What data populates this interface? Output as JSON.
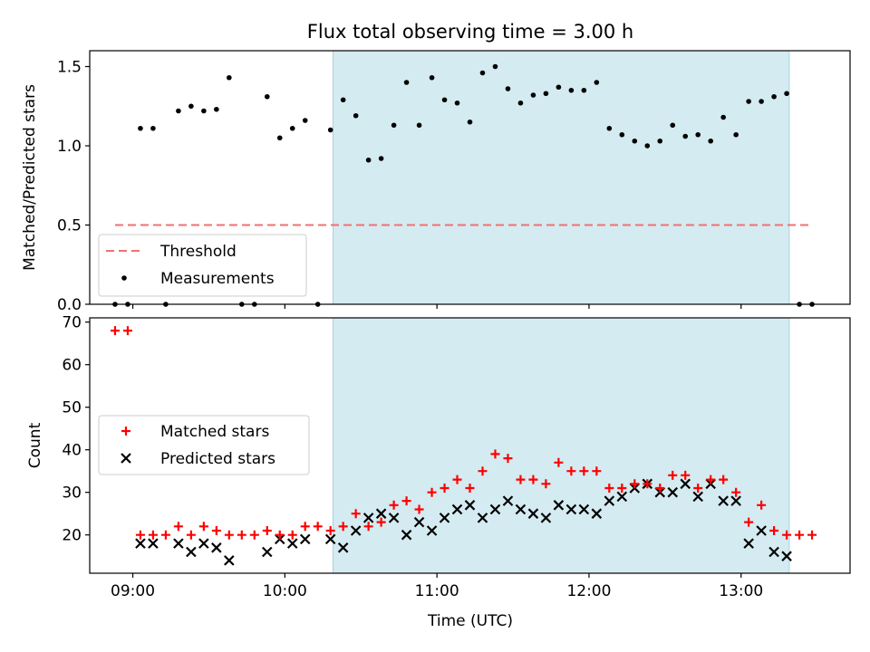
{
  "chart_data": [
    {
      "type": "scatter",
      "title": "Flux total observing time = 3.00 h",
      "xlabel": "",
      "ylabel": "Matched/Predicted stars",
      "xlim": [
        "08:43",
        "13:43"
      ],
      "ylim": [
        0,
        1.6
      ],
      "yticks": [
        0.0,
        0.5,
        1.0,
        1.5
      ],
      "ytick_labels": [
        "0.0",
        "0.5",
        "1.0",
        "1.5"
      ],
      "grid": false,
      "legend_position": "lower-left",
      "shaded_interval": [
        "10:19",
        "13:19"
      ],
      "threshold": {
        "name": "Threshold",
        "value": 0.5,
        "x_range": [
          "08:53",
          "13:28"
        ],
        "color": "#f07070"
      },
      "series": [
        {
          "name": "Measurements",
          "color": "#000000",
          "points": [
            [
              "08:53",
              0
            ],
            [
              "08:58",
              0
            ],
            [
              "09:03",
              1.11
            ],
            [
              "09:08",
              1.11
            ],
            [
              "09:13",
              0
            ],
            [
              "09:18",
              1.22
            ],
            [
              "09:23",
              1.25
            ],
            [
              "09:28",
              1.22
            ],
            [
              "09:33",
              1.23
            ],
            [
              "09:38",
              1.43
            ],
            [
              "09:43",
              0
            ],
            [
              "09:48",
              0
            ],
            [
              "09:53",
              1.31
            ],
            [
              "09:58",
              1.05
            ],
            [
              "10:03",
              1.11
            ],
            [
              "10:08",
              1.16
            ],
            [
              "10:13",
              0
            ],
            [
              "10:18",
              1.1
            ],
            [
              "10:23",
              1.29
            ],
            [
              "10:28",
              1.19
            ],
            [
              "10:33",
              0.91
            ],
            [
              "10:38",
              0.92
            ],
            [
              "10:43",
              1.13
            ],
            [
              "10:48",
              1.4
            ],
            [
              "10:53",
              1.13
            ],
            [
              "10:58",
              1.43
            ],
            [
              "11:03",
              1.29
            ],
            [
              "11:08",
              1.27
            ],
            [
              "11:13",
              1.15
            ],
            [
              "11:18",
              1.46
            ],
            [
              "11:23",
              1.5
            ],
            [
              "11:28",
              1.36
            ],
            [
              "11:33",
              1.27
            ],
            [
              "11:38",
              1.32
            ],
            [
              "11:43",
              1.33
            ],
            [
              "11:48",
              1.37
            ],
            [
              "11:53",
              1.35
            ],
            [
              "11:58",
              1.35
            ],
            [
              "12:03",
              1.4
            ],
            [
              "12:08",
              1.11
            ],
            [
              "12:13",
              1.07
            ],
            [
              "12:18",
              1.03
            ],
            [
              "12:23",
              1.0
            ],
            [
              "12:28",
              1.03
            ],
            [
              "12:33",
              1.13
            ],
            [
              "12:38",
              1.06
            ],
            [
              "12:43",
              1.07
            ],
            [
              "12:48",
              1.03
            ],
            [
              "12:53",
              1.18
            ],
            [
              "12:58",
              1.07
            ],
            [
              "13:03",
              1.28
            ],
            [
              "13:08",
              1.28
            ],
            [
              "13:13",
              1.31
            ],
            [
              "13:18",
              1.33
            ],
            [
              "13:23",
              0
            ],
            [
              "13:28",
              0
            ]
          ]
        }
      ]
    },
    {
      "type": "scatter",
      "title": "",
      "xlabel": "Time (UTC)",
      "ylabel": "Count",
      "xlim": [
        "08:43",
        "13:43"
      ],
      "ylim": [
        11,
        71
      ],
      "yticks": [
        20,
        30,
        40,
        50,
        60,
        70
      ],
      "ytick_labels": [
        "20",
        "30",
        "40",
        "50",
        "60",
        "70"
      ],
      "xticks": [
        "09:00",
        "10:00",
        "11:00",
        "12:00",
        "13:00"
      ],
      "xtick_labels": [
        "09:00",
        "10:00",
        "11:00",
        "12:00",
        "13:00"
      ],
      "grid": false,
      "legend_position": "center-left",
      "shaded_interval": [
        "10:19",
        "13:19"
      ],
      "series": [
        {
          "name": "Matched stars",
          "color": "#ff0000",
          "marker": "plus",
          "points": [
            [
              "08:53",
              68
            ],
            [
              "08:58",
              68
            ],
            [
              "09:03",
              20
            ],
            [
              "09:08",
              20
            ],
            [
              "09:13",
              20
            ],
            [
              "09:18",
              22
            ],
            [
              "09:23",
              20
            ],
            [
              "09:28",
              22
            ],
            [
              "09:33",
              21
            ],
            [
              "09:38",
              20
            ],
            [
              "09:43",
              20
            ],
            [
              "09:48",
              20
            ],
            [
              "09:53",
              21
            ],
            [
              "09:58",
              20
            ],
            [
              "10:03",
              20
            ],
            [
              "10:08",
              22
            ],
            [
              "10:13",
              22
            ],
            [
              "10:18",
              21
            ],
            [
              "10:23",
              22
            ],
            [
              "10:28",
              25
            ],
            [
              "10:33",
              22
            ],
            [
              "10:38",
              23
            ],
            [
              "10:43",
              27
            ],
            [
              "10:48",
              28
            ],
            [
              "10:53",
              26
            ],
            [
              "10:58",
              30
            ],
            [
              "11:03",
              31
            ],
            [
              "11:08",
              33
            ],
            [
              "11:13",
              31
            ],
            [
              "11:18",
              35
            ],
            [
              "11:23",
              39
            ],
            [
              "11:28",
              38
            ],
            [
              "11:33",
              33
            ],
            [
              "11:38",
              33
            ],
            [
              "11:43",
              32
            ],
            [
              "11:48",
              37
            ],
            [
              "11:53",
              35
            ],
            [
              "11:58",
              35
            ],
            [
              "12:03",
              35
            ],
            [
              "12:08",
              31
            ],
            [
              "12:13",
              31
            ],
            [
              "12:18",
              32
            ],
            [
              "12:23",
              32
            ],
            [
              "12:28",
              31
            ],
            [
              "12:33",
              34
            ],
            [
              "12:38",
              34
            ],
            [
              "12:43",
              31
            ],
            [
              "12:48",
              33
            ],
            [
              "12:53",
              33
            ],
            [
              "12:58",
              30
            ],
            [
              "13:03",
              23
            ],
            [
              "13:08",
              27
            ],
            [
              "13:13",
              21
            ],
            [
              "13:18",
              20
            ],
            [
              "13:23",
              20
            ],
            [
              "13:28",
              20
            ]
          ]
        },
        {
          "name": "Predicted stars",
          "color": "#000000",
          "marker": "x",
          "points": [
            [
              "09:03",
              18
            ],
            [
              "09:08",
              18
            ],
            [
              "09:18",
              18
            ],
            [
              "09:23",
              16
            ],
            [
              "09:28",
              18
            ],
            [
              "09:33",
              17
            ],
            [
              "09:38",
              14
            ],
            [
              "09:53",
              16
            ],
            [
              "09:58",
              19
            ],
            [
              "10:03",
              18
            ],
            [
              "10:08",
              19
            ],
            [
              "10:18",
              19
            ],
            [
              "10:23",
              17
            ],
            [
              "10:28",
              21
            ],
            [
              "10:33",
              24
            ],
            [
              "10:38",
              25
            ],
            [
              "10:43",
              24
            ],
            [
              "10:48",
              20
            ],
            [
              "10:53",
              23
            ],
            [
              "10:58",
              21
            ],
            [
              "11:03",
              24
            ],
            [
              "11:08",
              26
            ],
            [
              "11:13",
              27
            ],
            [
              "11:18",
              24
            ],
            [
              "11:23",
              26
            ],
            [
              "11:28",
              28
            ],
            [
              "11:33",
              26
            ],
            [
              "11:38",
              25
            ],
            [
              "11:43",
              24
            ],
            [
              "11:48",
              27
            ],
            [
              "11:53",
              26
            ],
            [
              "11:58",
              26
            ],
            [
              "12:03",
              25
            ],
            [
              "12:08",
              28
            ],
            [
              "12:13",
              29
            ],
            [
              "12:18",
              31
            ],
            [
              "12:23",
              32
            ],
            [
              "12:28",
              30
            ],
            [
              "12:33",
              30
            ],
            [
              "12:38",
              32
            ],
            [
              "12:43",
              29
            ],
            [
              "12:48",
              32
            ],
            [
              "12:53",
              28
            ],
            [
              "12:58",
              28
            ],
            [
              "13:03",
              18
            ],
            [
              "13:08",
              21
            ],
            [
              "13:13",
              16
            ],
            [
              "13:18",
              15
            ]
          ]
        }
      ]
    }
  ],
  "colors": {
    "shade": "#d4ebf1",
    "shade_edge": "#a9d2e1"
  }
}
